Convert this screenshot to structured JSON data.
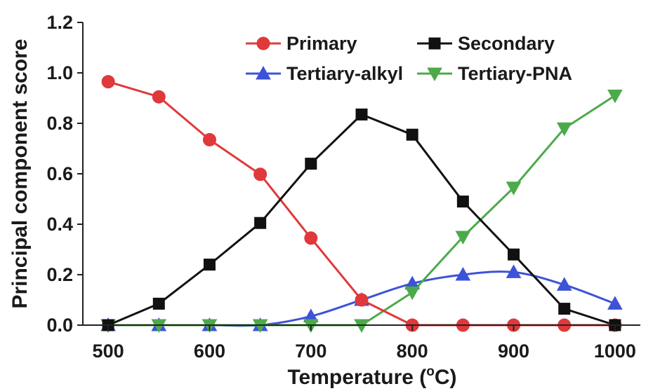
{
  "chart_data": {
    "type": "line",
    "xlabel_main": "Temperature (",
    "xlabel_sup": "o",
    "xlabel_end": "C)",
    "ylabel": "Principal component score",
    "x": [
      500,
      550,
      600,
      650,
      700,
      750,
      800,
      850,
      900,
      950,
      1000
    ],
    "xlim": [
      475,
      1025
    ],
    "ylim": [
      0,
      1.2
    ],
    "xticks": [
      "500",
      "600",
      "700",
      "800",
      "900",
      "1000"
    ],
    "xtick_values": [
      500,
      600,
      700,
      800,
      900,
      1000
    ],
    "yticks": [
      "0.0",
      "0.2",
      "0.4",
      "0.6",
      "0.8",
      "1.0",
      "1.2"
    ],
    "ytick_values": [
      0,
      0.2,
      0.4,
      0.6,
      0.8,
      1.0,
      1.2
    ],
    "grid": false,
    "legend_position": "top-right",
    "series": [
      {
        "name": "Primary",
        "color": "#e0393b",
        "marker": "circle",
        "values": [
          0.965,
          0.905,
          0.735,
          0.598,
          0.345,
          0.1,
          0.0,
          0.0,
          0.0,
          0.0,
          0.0
        ]
      },
      {
        "name": "Secondary",
        "color": "#111111",
        "marker": "square",
        "values": [
          0.0,
          0.085,
          0.24,
          0.405,
          0.64,
          0.835,
          0.755,
          0.49,
          0.28,
          0.065,
          0.0
        ]
      },
      {
        "name": "Tertiary-alkyl",
        "color": "#3c53d8",
        "marker": "triangle-up",
        "values": [
          0.0,
          0.0,
          0.0,
          0.0,
          0.035,
          0.1,
          0.165,
          0.2,
          0.21,
          0.16,
          0.085
        ]
      },
      {
        "name": "Tertiary-PNA",
        "color": "#4caa4a",
        "marker": "triangle-down",
        "values": [
          0.0,
          0.0,
          0.0,
          0.0,
          0.0,
          0.0,
          0.13,
          0.35,
          0.545,
          0.78,
          0.91
        ]
      }
    ],
    "smooth_series": [
      "Tertiary-alkyl"
    ]
  }
}
